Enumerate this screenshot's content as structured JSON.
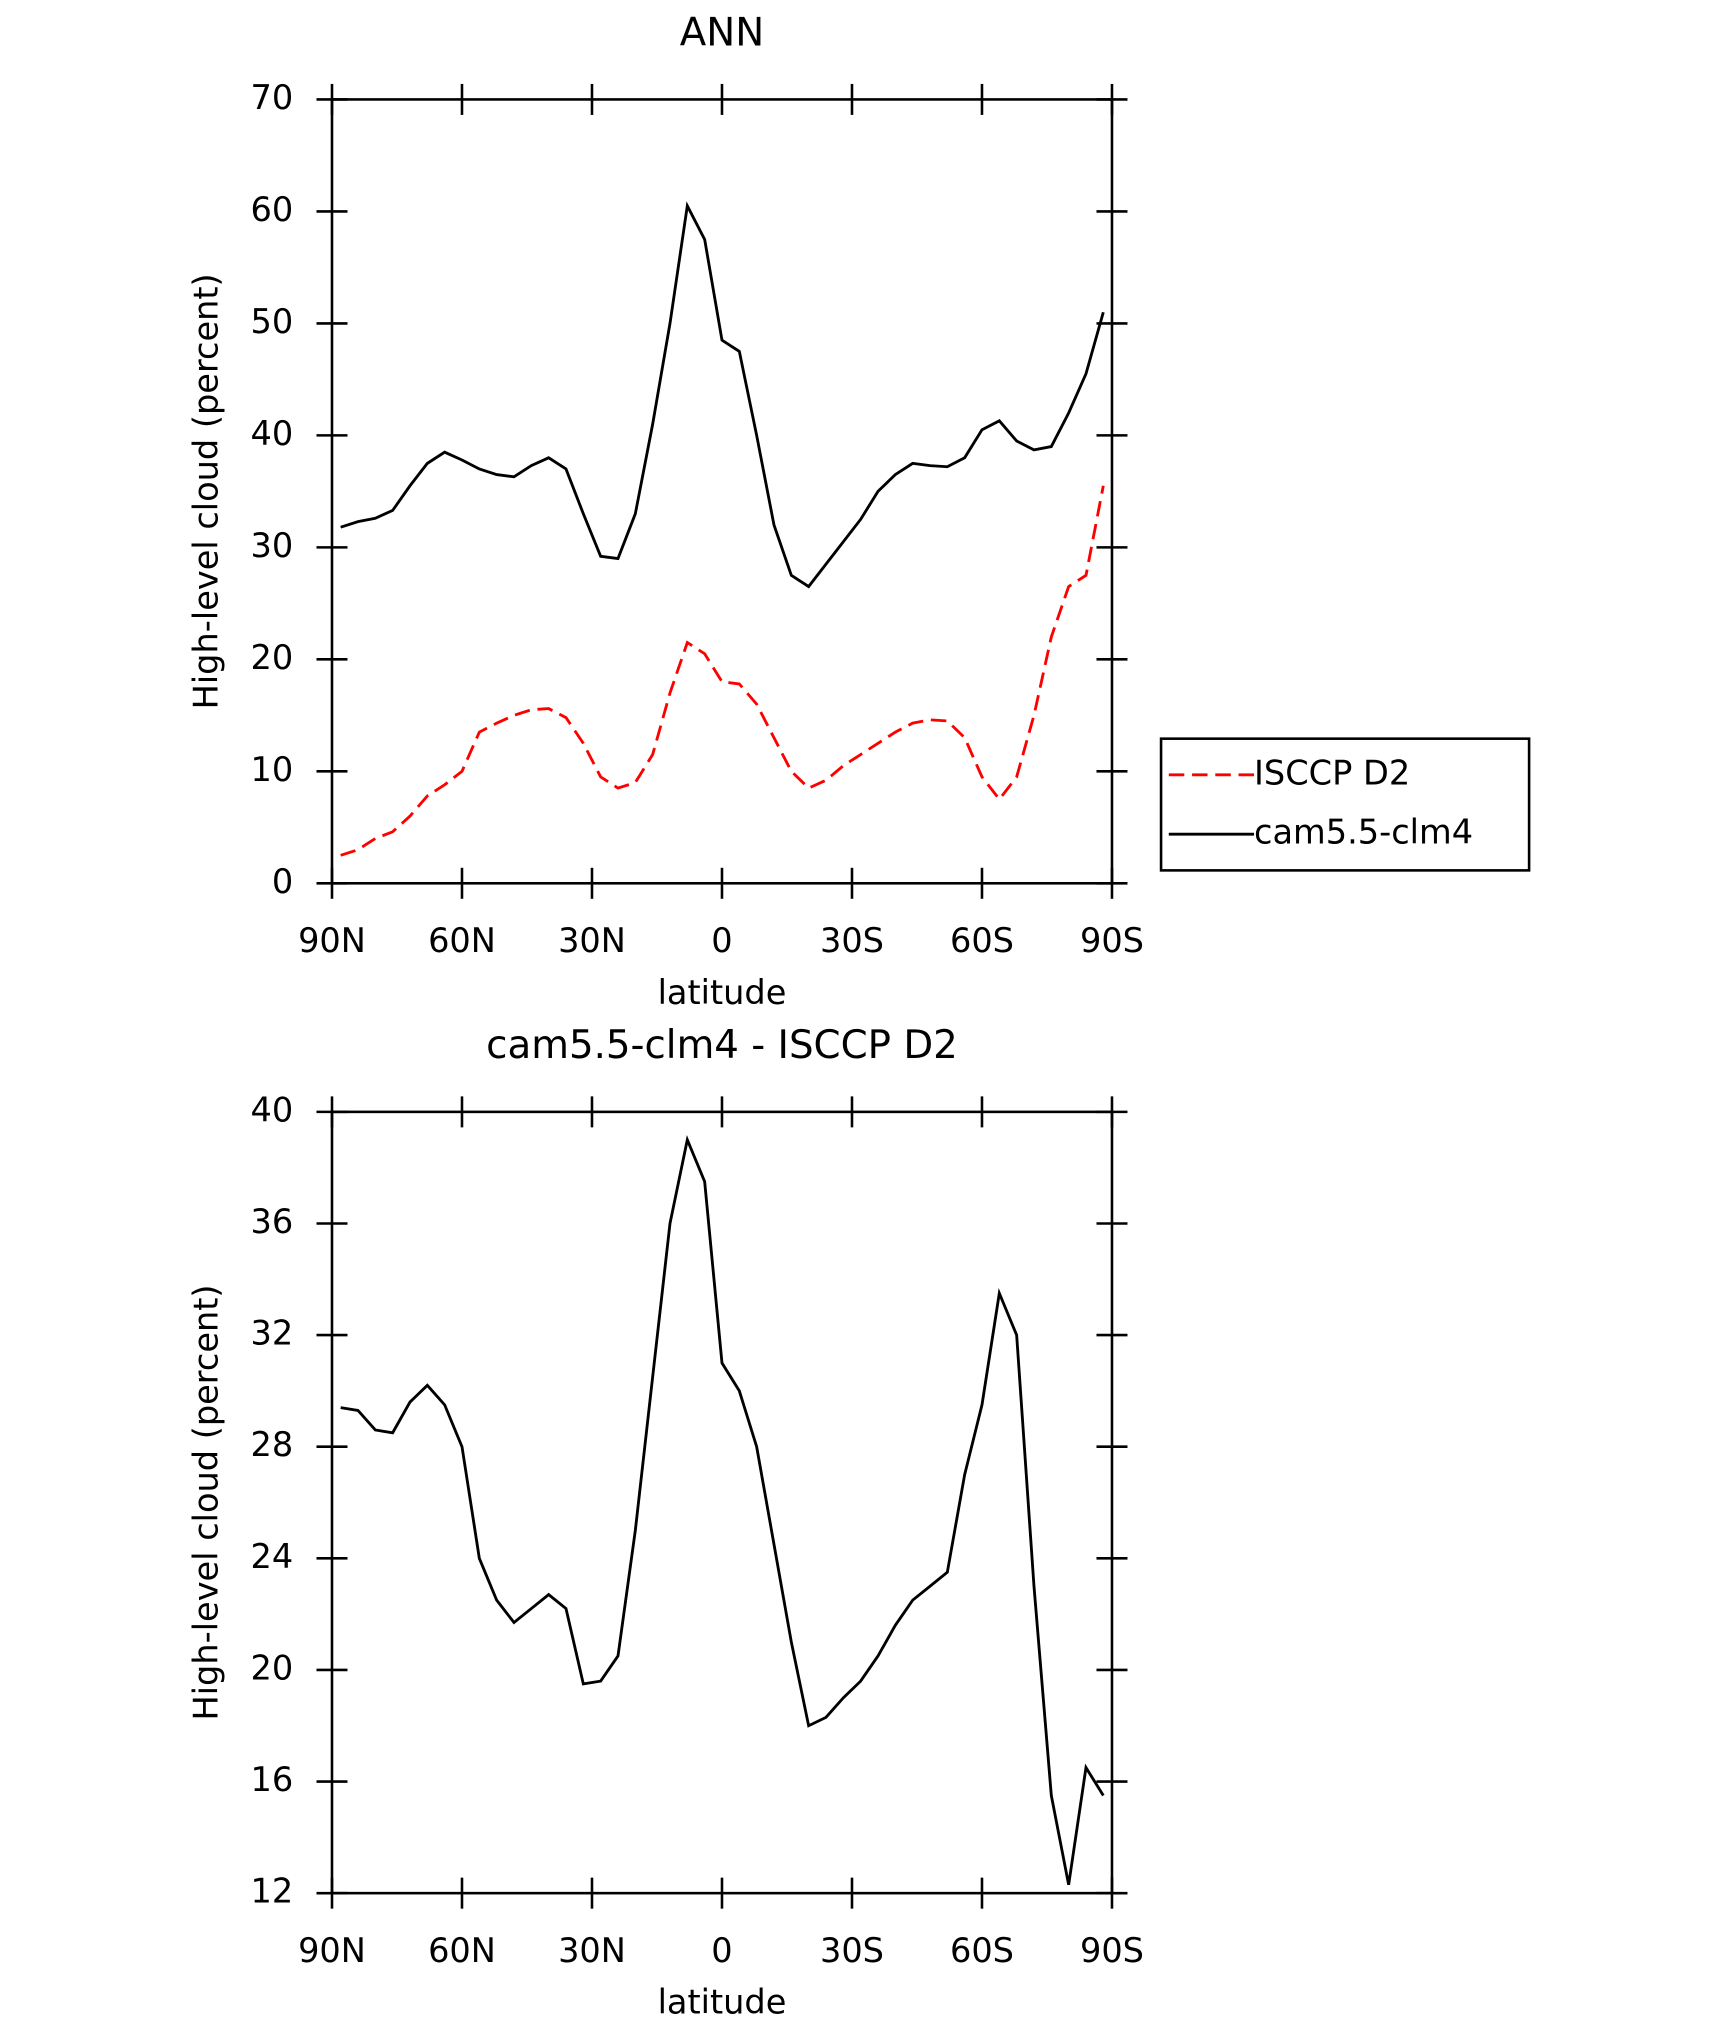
{
  "chart_data": [
    {
      "type": "line",
      "title": "ANN",
      "xlabel": "latitude",
      "ylabel": "High-level cloud (percent)",
      "x": [
        88,
        84,
        80,
        76,
        72,
        68,
        64,
        60,
        56,
        52,
        48,
        44,
        40,
        36,
        32,
        28,
        24,
        20,
        16,
        12,
        8,
        4,
        0,
        -4,
        -8,
        -12,
        -16,
        -20,
        -24,
        -28,
        -32,
        -36,
        -40,
        -44,
        -48,
        -52,
        -56,
        -60,
        -64,
        -68,
        -72,
        -76,
        -80,
        -84,
        -88
      ],
      "xlim": [
        90,
        -90
      ],
      "xticks": [
        {
          "value": 90,
          "label": "90N"
        },
        {
          "value": 60,
          "label": "60N"
        },
        {
          "value": 30,
          "label": "30N"
        },
        0,
        {
          "value": -30,
          "label": "30S"
        },
        {
          "value": -60,
          "label": "60S"
        },
        {
          "value": -90,
          "label": "90S"
        }
      ],
      "ylim": [
        0,
        70
      ],
      "yticks": [
        0,
        10,
        20,
        30,
        40,
        50,
        60,
        70
      ],
      "legend": "right",
      "series": [
        {
          "name": "ISCCP D2",
          "color": "#ff0000",
          "dash": true,
          "values": [
            2.5,
            3.0,
            4.0,
            4.6,
            6.0,
            7.8,
            8.8,
            10.0,
            13.5,
            14.3,
            15.0,
            15.5,
            15.6,
            14.8,
            12.5,
            9.5,
            8.5,
            9.0,
            11.5,
            17.0,
            21.5,
            20.5,
            18.0,
            17.8,
            16.0,
            13.0,
            10.0,
            8.5,
            9.2,
            10.5,
            11.5,
            12.5,
            13.5,
            14.3,
            14.6,
            14.5,
            13.0,
            9.5,
            7.5,
            9.5,
            15.0,
            22.0,
            26.5,
            27.5,
            35.5
          ]
        },
        {
          "name": "cam5.5-clm4",
          "color": "#000000",
          "dash": false,
          "values": [
            31.8,
            32.3,
            32.6,
            33.3,
            35.5,
            37.5,
            38.5,
            37.8,
            37.0,
            36.5,
            36.3,
            37.3,
            38.0,
            37.0,
            33.0,
            29.2,
            29.0,
            33.0,
            41.0,
            50.0,
            60.5,
            57.5,
            48.5,
            47.5,
            40.0,
            32.0,
            27.5,
            26.5,
            28.5,
            30.5,
            32.5,
            35.0,
            36.5,
            37.5,
            37.3,
            37.2,
            38.0,
            40.5,
            41.3,
            39.5,
            38.7,
            39.0,
            42.0,
            45.5,
            51.0
          ]
        }
      ]
    },
    {
      "type": "line",
      "title": "cam5.5-clm4 - ISCCP D2",
      "xlabel": "latitude",
      "ylabel": "High-level cloud (percent)",
      "x": [
        88,
        84,
        80,
        76,
        72,
        68,
        64,
        60,
        56,
        52,
        48,
        44,
        40,
        36,
        32,
        28,
        24,
        20,
        16,
        12,
        8,
        4,
        0,
        -4,
        -8,
        -12,
        -16,
        -20,
        -24,
        -28,
        -32,
        -36,
        -40,
        -44,
        -48,
        -52,
        -56,
        -60,
        -64,
        -68,
        -72,
        -76,
        -80,
        -84,
        -88
      ],
      "xlim": [
        90,
        -90
      ],
      "xticks": [
        {
          "value": 90,
          "label": "90N"
        },
        {
          "value": 60,
          "label": "60N"
        },
        {
          "value": 30,
          "label": "30N"
        },
        0,
        {
          "value": -30,
          "label": "30S"
        },
        {
          "value": -60,
          "label": "60S"
        },
        {
          "value": -90,
          "label": "90S"
        }
      ],
      "ylim": [
        12,
        40
      ],
      "yticks": [
        12,
        16,
        20,
        24,
        28,
        32,
        36,
        40
      ],
      "series": [
        {
          "color": "#000000",
          "dash": false,
          "values": [
            29.4,
            29.3,
            28.6,
            28.5,
            29.6,
            30.2,
            29.5,
            28.0,
            24.0,
            22.5,
            21.7,
            22.2,
            22.7,
            22.2,
            19.5,
            19.6,
            20.5,
            25.0,
            30.5,
            36.0,
            39.0,
            37.5,
            31.0,
            30.0,
            28.0,
            24.5,
            21.0,
            18.0,
            18.3,
            19.0,
            19.6,
            20.5,
            21.6,
            22.5,
            23.0,
            23.5,
            27.0,
            29.5,
            33.5,
            32.0,
            23.0,
            15.5,
            12.3,
            16.5,
            15.5
          ]
        }
      ]
    }
  ]
}
